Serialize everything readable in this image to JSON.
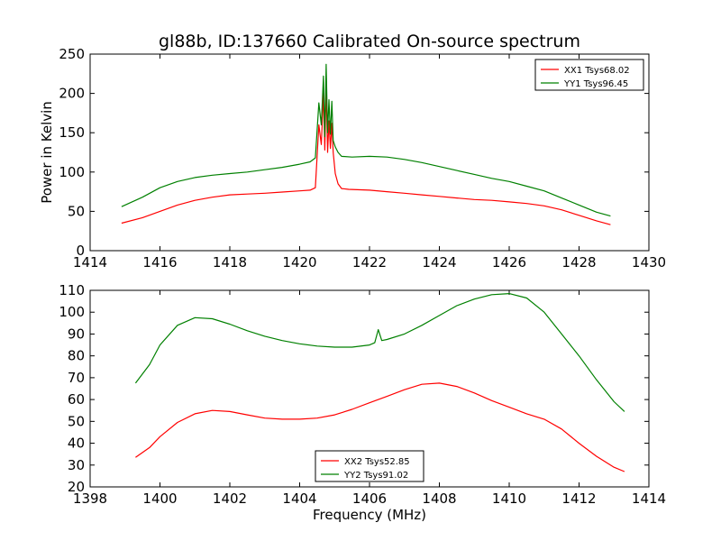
{
  "figure": {
    "title": "gl88b, ID:137660 Calibrated On-source spectrum"
  },
  "colors": {
    "xx": "#ff0000",
    "yy": "#008000"
  },
  "chart_data": [
    {
      "type": "line",
      "ylabel": "Power in Kelvin",
      "xlabel": "",
      "xlim": [
        1414,
        1430
      ],
      "ylim": [
        0,
        250
      ],
      "xticks": [
        "1414",
        "1416",
        "1418",
        "1420",
        "1422",
        "1424",
        "1426",
        "1428",
        "1430"
      ],
      "yticks": [
        "0",
        "50",
        "100",
        "150",
        "200",
        "250"
      ],
      "legend_position": "top-right",
      "series": [
        {
          "name": "XX1 Tsys68.02",
          "color": "#ff0000",
          "x": [
            1414.9,
            1415.5,
            1416.0,
            1416.5,
            1417.0,
            1417.5,
            1418.0,
            1418.5,
            1419.0,
            1419.5,
            1420.0,
            1420.3,
            1420.45,
            1420.55,
            1420.62,
            1420.68,
            1420.72,
            1420.76,
            1420.8,
            1420.84,
            1420.88,
            1420.92,
            1420.96,
            1421.02,
            1421.1,
            1421.2,
            1421.4,
            1422.0,
            1422.5,
            1423.0,
            1423.5,
            1424.0,
            1424.5,
            1425.0,
            1425.5,
            1426.0,
            1426.5,
            1427.0,
            1427.5,
            1428.0,
            1428.5,
            1428.9
          ],
          "y": [
            35,
            42,
            50,
            58,
            64,
            68,
            71,
            72,
            73,
            74.5,
            76,
            77,
            80,
            160,
            135,
            200,
            128,
            210,
            125,
            165,
            130,
            162,
            125,
            98,
            85,
            79,
            78,
            77,
            75,
            73,
            71,
            69,
            67,
            65,
            64,
            62,
            60,
            57,
            52,
            45,
            38,
            33
          ]
        },
        {
          "name": "YY1 Tsys96.45",
          "color": "#008000",
          "x": [
            1414.9,
            1415.5,
            1416.0,
            1416.5,
            1417.0,
            1417.5,
            1418.0,
            1418.5,
            1419.0,
            1419.5,
            1420.0,
            1420.3,
            1420.45,
            1420.55,
            1420.62,
            1420.68,
            1420.72,
            1420.76,
            1420.8,
            1420.84,
            1420.88,
            1420.92,
            1420.96,
            1421.02,
            1421.1,
            1421.2,
            1421.5,
            1422.0,
            1422.5,
            1423.0,
            1423.5,
            1424.0,
            1424.5,
            1425.0,
            1425.5,
            1426.0,
            1426.5,
            1427.0,
            1427.5,
            1428.0,
            1428.5,
            1428.9
          ],
          "y": [
            56,
            68,
            80,
            88,
            93,
            96,
            98,
            100,
            103,
            106,
            110,
            113,
            118,
            188,
            160,
            222,
            145,
            237,
            150,
            192,
            148,
            190,
            140,
            132,
            125,
            120,
            119,
            120,
            119,
            116,
            112,
            107,
            102,
            97,
            92,
            88,
            82,
            76,
            67,
            58,
            49,
            44
          ]
        }
      ]
    },
    {
      "type": "line",
      "ylabel": "",
      "xlabel": "Frequency (MHz)",
      "xlim": [
        1398,
        1414
      ],
      "ylim": [
        20,
        110
      ],
      "xticks": [
        "1398",
        "1400",
        "1402",
        "1404",
        "1406",
        "1408",
        "1410",
        "1412",
        "1414"
      ],
      "yticks": [
        "20",
        "30",
        "40",
        "50",
        "60",
        "70",
        "80",
        "90",
        "100",
        "110"
      ],
      "legend_position": "bottom-center",
      "series": [
        {
          "name": "XX2 Tsys52.85",
          "color": "#ff0000",
          "x": [
            1399.3,
            1399.7,
            1400.0,
            1400.5,
            1401.0,
            1401.5,
            1402.0,
            1402.5,
            1403.0,
            1403.5,
            1404.0,
            1404.5,
            1405.0,
            1405.5,
            1406.0,
            1406.5,
            1407.0,
            1407.5,
            1408.0,
            1408.5,
            1409.0,
            1409.5,
            1410.0,
            1410.5,
            1411.0,
            1411.5,
            1412.0,
            1412.5,
            1413.0,
            1413.3
          ],
          "y": [
            33.5,
            38,
            43,
            49.5,
            53.5,
            55,
            54.5,
            53,
            51.5,
            51,
            51,
            51.5,
            53,
            55.5,
            58.5,
            61.5,
            64.5,
            67,
            67.5,
            66,
            63,
            59.5,
            56.5,
            53.5,
            51,
            46.5,
            40,
            34,
            29,
            27
          ]
        },
        {
          "name": "YY2 Tsys91.02",
          "color": "#008000",
          "x": [
            1399.3,
            1399.7,
            1400.0,
            1400.5,
            1401.0,
            1401.5,
            1402.0,
            1402.5,
            1403.0,
            1403.5,
            1404.0,
            1404.5,
            1405.0,
            1405.5,
            1406.0,
            1406.15,
            1406.25,
            1406.35,
            1406.5,
            1407.0,
            1407.5,
            1408.0,
            1408.5,
            1409.0,
            1409.5,
            1410.0,
            1410.5,
            1411.0,
            1411.5,
            1412.0,
            1412.5,
            1413.0,
            1413.3
          ],
          "y": [
            67.5,
            76,
            85,
            94,
            97.5,
            97,
            94.5,
            91.5,
            89,
            87,
            85.5,
            84.5,
            84,
            84,
            85,
            86,
            92,
            87,
            87.5,
            90,
            94,
            98.5,
            103,
            106,
            108,
            108.5,
            106.5,
            100,
            90,
            80,
            69,
            59,
            54.5
          ]
        }
      ]
    }
  ]
}
